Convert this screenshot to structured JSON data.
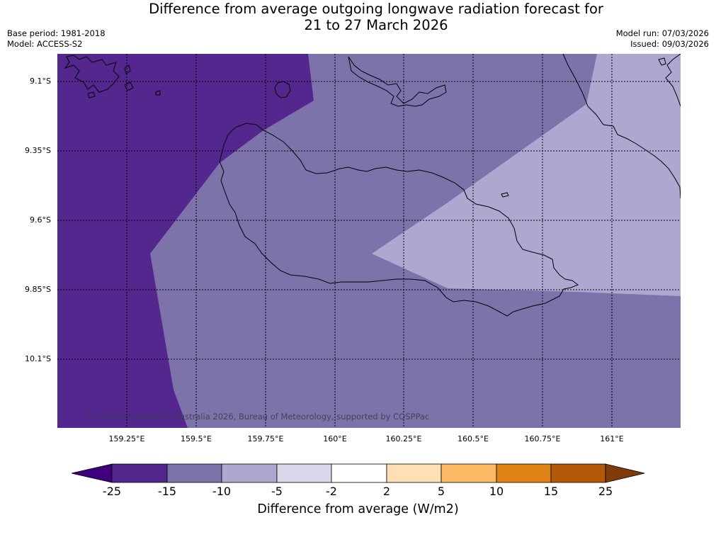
{
  "header": {
    "title_line1": "Difference from average outgoing longwave radiation forecast for",
    "title_line2": "21 to 27 March 2026",
    "base_period": "Base period: 1981-2018",
    "model": "Model: ACCESS-S2",
    "model_run": "Model run: 07/03/2026",
    "issued": "Issued: 09/03/2026"
  },
  "map": {
    "lat_labels": [
      "9.1°S",
      "9.35°S",
      "9.6°S",
      "9.85°S",
      "10.1°S"
    ],
    "lon_labels": [
      "159.25°E",
      "159.5°E",
      "159.75°E",
      "160°E",
      "160.25°E",
      "160.5°E",
      "160.75°E",
      "161°E"
    ],
    "copyright": "© Commonwealth of Australia 2026, Bureau of Meteorology, supported by COSPPac",
    "colors": {
      "band_minus15_to_minus10": "#54278f",
      "band_minus10_to_minus5": "#7e72ab",
      "band_minus5_to_minus2": "#aea8d0",
      "coastline": "#000000",
      "gridline": "#000000"
    }
  },
  "colorbar": {
    "ticks": [
      "-25",
      "-15",
      "-10",
      "-5",
      "-2",
      "2",
      "5",
      "10",
      "15",
      "25"
    ],
    "colors": [
      "#3f007d",
      "#54278f",
      "#7e72ab",
      "#aea8d0",
      "#d8d7ea",
      "#ffffff",
      "#ffe0b5",
      "#fdb863",
      "#e08214",
      "#b35806",
      "#7f3b08"
    ],
    "label": "Difference from average (W/m2)"
  }
}
